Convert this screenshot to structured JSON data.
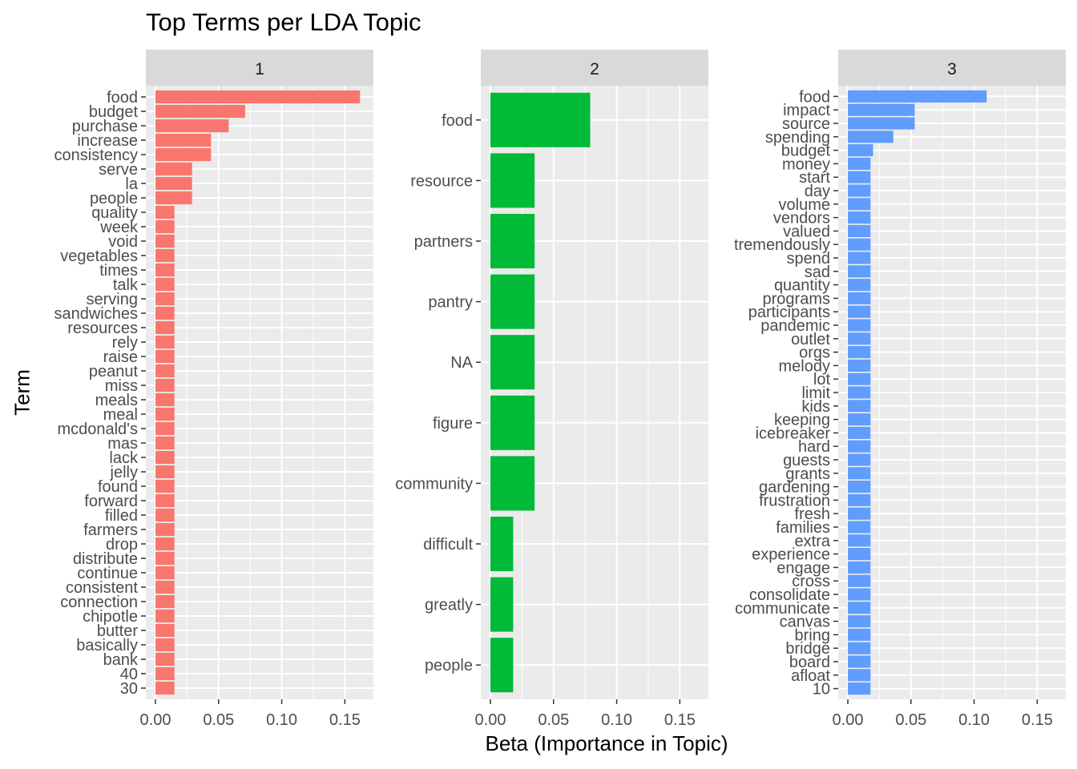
{
  "chart_data": {
    "type": "bar",
    "orientation": "horizontal",
    "title": "Top Terms per LDA Topic",
    "xlabel": "Beta (Importance in Topic)",
    "ylabel": "Term",
    "xlim": [
      0,
      0.17
    ],
    "xticks": [
      0.0,
      0.05,
      0.1,
      0.15
    ],
    "xtick_labels": [
      "0.00",
      "0.05",
      "0.10",
      "0.15"
    ],
    "grid": true,
    "legend": "none",
    "facets": [
      {
        "label": "1",
        "color": "#F8766D",
        "terms": [
          "food",
          "budget",
          "purchase",
          "increase",
          "consistency",
          "serve",
          "la",
          "people",
          "quality",
          "week",
          "void",
          "vegetables",
          "times",
          "talk",
          "serving",
          "sandwiches",
          "resources",
          "rely",
          "raise",
          "peanut",
          "miss",
          "meals",
          "meal",
          "mcdonald's",
          "mas",
          "lack",
          "jelly",
          "found",
          "forward",
          "filled",
          "farmers",
          "drop",
          "distribute",
          "continue",
          "consistent",
          "connection",
          "chipotle",
          "butter",
          "basically",
          "bank",
          "40",
          "30"
        ],
        "values": [
          0.162,
          0.071,
          0.058,
          0.044,
          0.044,
          0.029,
          0.029,
          0.029,
          0.015,
          0.015,
          0.015,
          0.015,
          0.015,
          0.015,
          0.015,
          0.015,
          0.015,
          0.015,
          0.015,
          0.015,
          0.015,
          0.015,
          0.015,
          0.015,
          0.015,
          0.015,
          0.015,
          0.015,
          0.015,
          0.015,
          0.015,
          0.015,
          0.015,
          0.015,
          0.015,
          0.015,
          0.015,
          0.015,
          0.015,
          0.015,
          0.015,
          0.015
        ]
      },
      {
        "label": "2",
        "color": "#00BA38",
        "terms": [
          "food",
          "resource",
          "partners",
          "pantry",
          "NA",
          "figure",
          "community",
          "difficult",
          "greatly",
          "people"
        ],
        "values": [
          0.079,
          0.035,
          0.035,
          0.035,
          0.035,
          0.035,
          0.035,
          0.018,
          0.018,
          0.018
        ]
      },
      {
        "label": "3",
        "color": "#619CFF",
        "terms": [
          "food",
          "impact",
          "source",
          "spending",
          "budget",
          "money",
          "start",
          "day",
          "volume",
          "vendors",
          "valued",
          "tremendously",
          "spend",
          "sad",
          "quantity",
          "programs",
          "participants",
          "pandemic",
          "outlet",
          "orgs",
          "melody",
          "lot",
          "limit",
          "kids",
          "keeping",
          "icebreaker",
          "hard",
          "guests",
          "grants",
          "gardening",
          "frustration",
          "fresh",
          "families",
          "extra",
          "experience",
          "engage",
          "cross",
          "consolidate",
          "communicate",
          "canvas",
          "bring",
          "bridge",
          "board",
          "afloat",
          "10"
        ],
        "values": [
          0.11,
          0.053,
          0.053,
          0.036,
          0.02,
          0.018,
          0.018,
          0.018,
          0.018,
          0.018,
          0.018,
          0.018,
          0.018,
          0.018,
          0.018,
          0.018,
          0.018,
          0.018,
          0.018,
          0.018,
          0.018,
          0.018,
          0.018,
          0.018,
          0.018,
          0.018,
          0.018,
          0.018,
          0.018,
          0.018,
          0.018,
          0.018,
          0.018,
          0.018,
          0.018,
          0.018,
          0.018,
          0.018,
          0.018,
          0.018,
          0.018,
          0.018,
          0.018,
          0.018,
          0.018
        ]
      }
    ]
  }
}
